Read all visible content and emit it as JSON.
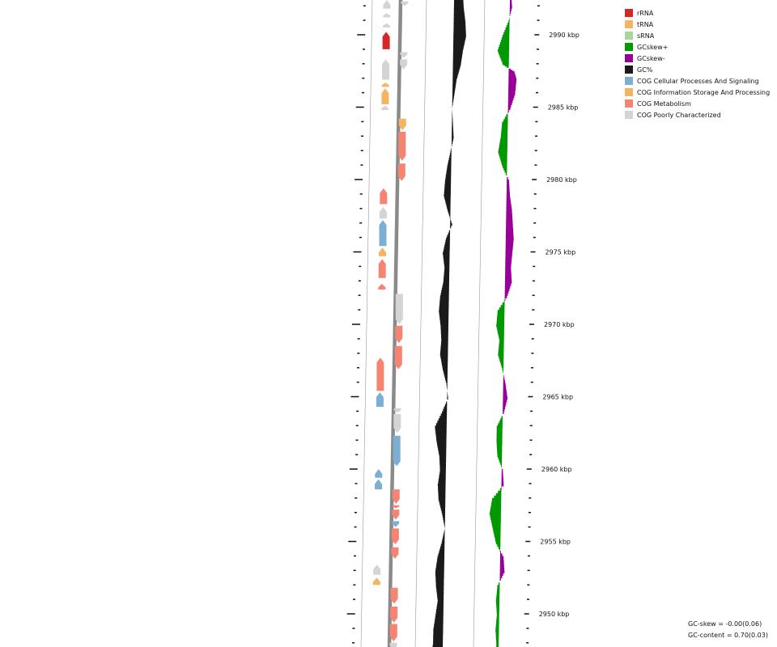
{
  "legend": [
    {
      "key": "rrna",
      "label": "rRNA",
      "color": "#d62728"
    },
    {
      "key": "trna",
      "label": "tRNA",
      "color": "#f5b462"
    },
    {
      "key": "srna",
      "label": "sRNA",
      "color": "#a6d89a"
    },
    {
      "key": "gcskew_pos",
      "label": "GCskew+",
      "color": "#009900"
    },
    {
      "key": "gcskew_neg",
      "label": "GCskew-",
      "color": "#990099"
    },
    {
      "key": "gc",
      "label": "GC%",
      "color": "#1a1a1a"
    },
    {
      "key": "cog_cell",
      "label": "COG Cellular Processes And Signaling",
      "color": "#7bafd4"
    },
    {
      "key": "cog_info",
      "label": "COG Information Storage And Processing",
      "color": "#f5b462"
    },
    {
      "key": "cog_meta",
      "label": "COG Metabolism",
      "color": "#f68473"
    },
    {
      "key": "cog_poor",
      "label": "COG Poorly Characterized",
      "color": "#d4d4d4"
    }
  ],
  "ticks": [
    {
      "kbp": 2990,
      "label": "2990 kbp"
    },
    {
      "kbp": 2985,
      "label": "2985 kbp"
    },
    {
      "kbp": 2980,
      "label": "2980 kbp"
    },
    {
      "kbp": 2975,
      "label": "2975 kbp"
    },
    {
      "kbp": 2970,
      "label": "2970 kbp"
    },
    {
      "kbp": 2965,
      "label": "2965 kbp"
    },
    {
      "kbp": 2960,
      "label": "2960 kbp"
    },
    {
      "kbp": 2955,
      "label": "2955 kbp"
    },
    {
      "kbp": 2950,
      "label": "2950 kbp"
    }
  ],
  "stats": {
    "gc_skew": "GC-skew = -0.00(0.06)",
    "gc_content": "GC-content = 0.70(0.03)"
  },
  "features": [
    {
      "ring": "outer",
      "type": "rrna",
      "start": 2990.2,
      "end": 2989.0,
      "strand": 1
    },
    {
      "ring": "outer",
      "type": "cog_poor",
      "start": 2992.4,
      "end": 2991.8,
      "strand": 1
    },
    {
      "ring": "outer",
      "type": "cog_poor",
      "start": 2991.5,
      "end": 2991.2,
      "strand": 1
    },
    {
      "ring": "outer",
      "type": "cog_poor",
      "start": 2990.8,
      "end": 2990.5,
      "strand": 1
    },
    {
      "ring": "outer",
      "type": "cog_poor",
      "start": 2988.3,
      "end": 2986.9,
      "strand": 1
    },
    {
      "ring": "outer",
      "type": "trna",
      "start": 2986.7,
      "end": 2986.4,
      "strand": 1
    },
    {
      "ring": "outer",
      "type": "trna",
      "start": 2986.3,
      "end": 2985.2,
      "strand": 1
    },
    {
      "ring": "outer",
      "type": "cog_poor",
      "start": 2985.1,
      "end": 2984.8,
      "strand": 1
    },
    {
      "ring": "inner",
      "type": "rrna",
      "start": 2992.9,
      "end": 2992.6,
      "strand": -1
    },
    {
      "ring": "inner",
      "type": "cog_poor",
      "start": 2992.3,
      "end": 2992.0,
      "strand": -1
    },
    {
      "ring": "inner",
      "type": "cog_poor",
      "start": 2988.8,
      "end": 2988.4,
      "strand": -1
    },
    {
      "ring": "inner",
      "type": "cog_poor",
      "start": 2988.3,
      "end": 2987.6,
      "strand": -1
    },
    {
      "ring": "inner",
      "type": "trna",
      "start": 2984.2,
      "end": 2983.4,
      "strand": -1
    },
    {
      "ring": "inner",
      "type": "cog_meta",
      "start": 2983.3,
      "end": 2981.3,
      "strand": -1
    },
    {
      "ring": "inner",
      "type": "cog_meta",
      "start": 2981.1,
      "end": 2979.9,
      "strand": -1
    },
    {
      "ring": "outer",
      "type": "cog_meta",
      "start": 2979.4,
      "end": 2978.3,
      "strand": 1
    },
    {
      "ring": "outer",
      "type": "cog_poor",
      "start": 2978.1,
      "end": 2977.3,
      "strand": 1
    },
    {
      "ring": "outer",
      "type": "cog_cell",
      "start": 2977.2,
      "end": 2975.4,
      "strand": 1
    },
    {
      "ring": "outer",
      "type": "trna",
      "start": 2975.3,
      "end": 2974.7,
      "strand": 1
    },
    {
      "ring": "outer",
      "type": "cog_meta",
      "start": 2974.5,
      "end": 2973.2,
      "strand": 1
    },
    {
      "ring": "outer",
      "type": "cog_meta",
      "start": 2972.8,
      "end": 2972.4,
      "strand": 1
    },
    {
      "ring": "inner",
      "type": "cog_poor",
      "start": 2972.1,
      "end": 2970.0,
      "strand": -1
    },
    {
      "ring": "inner",
      "type": "cog_meta",
      "start": 2969.9,
      "end": 2968.7,
      "strand": -1
    },
    {
      "ring": "inner",
      "type": "cog_meta",
      "start": 2968.5,
      "end": 2966.9,
      "strand": -1
    },
    {
      "ring": "outer",
      "type": "cog_meta",
      "start": 2967.7,
      "end": 2965.4,
      "strand": 1
    },
    {
      "ring": "outer",
      "type": "cog_cell",
      "start": 2965.3,
      "end": 2964.3,
      "strand": 1
    },
    {
      "ring": "inner",
      "type": "cog_poor",
      "start": 2964.2,
      "end": 2963.9,
      "strand": -1
    },
    {
      "ring": "inner",
      "type": "cog_poor",
      "start": 2963.8,
      "end": 2962.5,
      "strand": -1
    },
    {
      "ring": "inner",
      "type": "cog_cell",
      "start": 2962.3,
      "end": 2960.2,
      "strand": -1
    },
    {
      "ring": "outer",
      "type": "cog_cell",
      "start": 2960.0,
      "end": 2959.4,
      "strand": 1
    },
    {
      "ring": "outer",
      "type": "cog_cell",
      "start": 2959.3,
      "end": 2958.6,
      "strand": 1
    },
    {
      "ring": "inner",
      "type": "cog_meta",
      "start": 2958.6,
      "end": 2957.6,
      "strand": -1
    },
    {
      "ring": "inner",
      "type": "cog_meta",
      "start": 2957.5,
      "end": 2957.3,
      "strand": -1
    },
    {
      "ring": "inner",
      "type": "cog_meta",
      "start": 2957.2,
      "end": 2956.5,
      "strand": -1
    },
    {
      "ring": "inner",
      "type": "cog_cell",
      "start": 2956.4,
      "end": 2956.0,
      "strand": -1
    },
    {
      "ring": "inner",
      "type": "cog_meta",
      "start": 2955.9,
      "end": 2954.8,
      "strand": -1
    },
    {
      "ring": "inner",
      "type": "cog_meta",
      "start": 2954.6,
      "end": 2953.8,
      "strand": -1
    },
    {
      "ring": "outer",
      "type": "cog_poor",
      "start": 2953.4,
      "end": 2952.7,
      "strand": 1
    },
    {
      "ring": "outer",
      "type": "trna",
      "start": 2952.5,
      "end": 2952.0,
      "strand": 1
    },
    {
      "ring": "inner",
      "type": "cog_meta",
      "start": 2951.8,
      "end": 2950.7,
      "strand": -1
    },
    {
      "ring": "inner",
      "type": "cog_meta",
      "start": 2950.5,
      "end": 2949.4,
      "strand": -1
    },
    {
      "ring": "inner",
      "type": "cog_meta",
      "start": 2949.3,
      "end": 2948.1,
      "strand": -1
    },
    {
      "ring": "inner",
      "type": "cog_poor",
      "start": 2948.0,
      "end": 2947.5,
      "strand": -1
    }
  ],
  "gc_content": [
    {
      "kbp": 2993.0,
      "value": 0.79
    },
    {
      "kbp": 2992.0,
      "value": 0.8
    },
    {
      "kbp": 2991.0,
      "value": 0.82
    },
    {
      "kbp": 2990.0,
      "value": 0.83
    },
    {
      "kbp": 2989.0,
      "value": 0.8
    },
    {
      "kbp": 2988.0,
      "value": 0.78
    },
    {
      "kbp": 2987.0,
      "value": 0.74
    },
    {
      "kbp": 2986.0,
      "value": 0.72
    },
    {
      "kbp": 2985.0,
      "value": 0.7
    },
    {
      "kbp": 2984.0,
      "value": 0.71
    },
    {
      "kbp": 2983.0,
      "value": 0.72
    },
    {
      "kbp": 2982.0,
      "value": 0.69
    },
    {
      "kbp": 2981.0,
      "value": 0.66
    },
    {
      "kbp": 2980.0,
      "value": 0.64
    },
    {
      "kbp": 2979.0,
      "value": 0.63
    },
    {
      "kbp": 2978.0,
      "value": 0.67
    },
    {
      "kbp": 2977.0,
      "value": 0.72
    },
    {
      "kbp": 2976.0,
      "value": 0.66
    },
    {
      "kbp": 2975.0,
      "value": 0.63
    },
    {
      "kbp": 2974.0,
      "value": 0.65
    },
    {
      "kbp": 2973.0,
      "value": 0.64
    },
    {
      "kbp": 2972.0,
      "value": 0.61
    },
    {
      "kbp": 2971.0,
      "value": 0.6
    },
    {
      "kbp": 2970.0,
      "value": 0.62
    },
    {
      "kbp": 2969.0,
      "value": 0.63
    },
    {
      "kbp": 2968.0,
      "value": 0.62
    },
    {
      "kbp": 2967.0,
      "value": 0.65
    },
    {
      "kbp": 2966.0,
      "value": 0.69
    },
    {
      "kbp": 2965.0,
      "value": 0.71
    },
    {
      "kbp": 2964.0,
      "value": 0.65
    },
    {
      "kbp": 2963.0,
      "value": 0.58
    },
    {
      "kbp": 2962.0,
      "value": 0.6
    },
    {
      "kbp": 2961.0,
      "value": 0.63
    },
    {
      "kbp": 2960.0,
      "value": 0.64
    },
    {
      "kbp": 2959.0,
      "value": 0.62
    },
    {
      "kbp": 2958.0,
      "value": 0.63
    },
    {
      "kbp": 2957.0,
      "value": 0.67
    },
    {
      "kbp": 2956.0,
      "value": 0.7
    },
    {
      "kbp": 2955.0,
      "value": 0.67
    },
    {
      "kbp": 2954.0,
      "value": 0.63
    },
    {
      "kbp": 2953.0,
      "value": 0.61
    },
    {
      "kbp": 2952.0,
      "value": 0.62
    },
    {
      "kbp": 2951.0,
      "value": 0.64
    },
    {
      "kbp": 2950.0,
      "value": 0.62
    },
    {
      "kbp": 2949.0,
      "value": 0.6
    },
    {
      "kbp": 2948.0,
      "value": 0.6
    },
    {
      "kbp": 2947.5,
      "value": 0.59
    }
  ],
  "gc_skew": [
    {
      "kbp": 2993.0,
      "value": 0.01
    },
    {
      "kbp": 2992.0,
      "value": 0.02
    },
    {
      "kbp": 2991.0,
      "value": -0.01
    },
    {
      "kbp": 2990.0,
      "value": -0.06
    },
    {
      "kbp": 2989.0,
      "value": -0.1
    },
    {
      "kbp": 2988.0,
      "value": -0.05
    },
    {
      "kbp": 2987.5,
      "value": 0.05
    },
    {
      "kbp": 2987.0,
      "value": 0.07
    },
    {
      "kbp": 2986.0,
      "value": 0.06
    },
    {
      "kbp": 2985.0,
      "value": 0.02
    },
    {
      "kbp": 2984.0,
      "value": -0.05
    },
    {
      "kbp": 2983.0,
      "value": -0.06
    },
    {
      "kbp": 2982.0,
      "value": -0.08
    },
    {
      "kbp": 2981.0,
      "value": -0.04
    },
    {
      "kbp": 2980.0,
      "value": 0.02
    },
    {
      "kbp": 2979.0,
      "value": 0.03
    },
    {
      "kbp": 2978.0,
      "value": 0.05
    },
    {
      "kbp": 2977.0,
      "value": 0.06
    },
    {
      "kbp": 2976.0,
      "value": 0.07
    },
    {
      "kbp": 2975.0,
      "value": 0.06
    },
    {
      "kbp": 2974.0,
      "value": 0.05
    },
    {
      "kbp": 2973.0,
      "value": 0.06
    },
    {
      "kbp": 2972.0,
      "value": 0.02
    },
    {
      "kbp": 2971.0,
      "value": -0.06
    },
    {
      "kbp": 2970.0,
      "value": -0.07
    },
    {
      "kbp": 2969.0,
      "value": -0.04
    },
    {
      "kbp": 2968.0,
      "value": -0.05
    },
    {
      "kbp": 2967.0,
      "value": -0.01
    },
    {
      "kbp": 2966.0,
      "value": 0.02
    },
    {
      "kbp": 2965.0,
      "value": 0.04
    },
    {
      "kbp": 2964.0,
      "value": 0.01
    },
    {
      "kbp": 2963.0,
      "value": -0.05
    },
    {
      "kbp": 2962.0,
      "value": -0.05
    },
    {
      "kbp": 2961.0,
      "value": -0.04
    },
    {
      "kbp": 2960.0,
      "value": 0.01
    },
    {
      "kbp": 2959.0,
      "value": 0.02
    },
    {
      "kbp": 2958.0,
      "value": -0.08
    },
    {
      "kbp": 2957.0,
      "value": -0.1
    },
    {
      "kbp": 2956.0,
      "value": -0.07
    },
    {
      "kbp": 2955.0,
      "value": -0.04
    },
    {
      "kbp": 2954.0,
      "value": 0.03
    },
    {
      "kbp": 2953.0,
      "value": 0.04
    },
    {
      "kbp": 2952.0,
      "value": -0.02
    },
    {
      "kbp": 2951.0,
      "value": -0.03
    },
    {
      "kbp": 2950.0,
      "value": -0.02
    },
    {
      "kbp": 2949.0,
      "value": -0.03
    },
    {
      "kbp": 2948.0,
      "value": -0.02
    },
    {
      "kbp": 2947.5,
      "value": -0.02
    }
  ]
}
